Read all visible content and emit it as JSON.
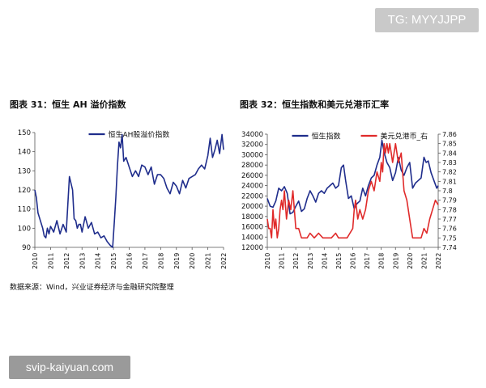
{
  "watermark_top": "TG: MYYJJPP",
  "watermark_bottom": "svip-kaiyuan.com",
  "source": "数据来源：Wind，兴业证券经济与金融研究院整理",
  "colors": {
    "blue": "#1f2d8c",
    "red": "#e02a2a"
  },
  "chart_data": [
    {
      "type": "line",
      "title": "图表 31：恒生 AH 溢价指数",
      "x_ticks": [
        "2010",
        "2011",
        "2012",
        "2013",
        "2014",
        "2015",
        "2016",
        "2017",
        "2018",
        "2019",
        "2020",
        "2021",
        "2022"
      ],
      "ylim": [
        90,
        150
      ],
      "y_ticks": [
        90,
        100,
        110,
        120,
        130,
        140,
        150
      ],
      "legend": "top-center",
      "series": [
        {
          "name": "恒生AH股溢价指数",
          "color": "#1f2d8c",
          "x": [
            2010.0,
            2010.1,
            2010.2,
            2010.35,
            2010.5,
            2010.6,
            2010.7,
            2010.8,
            2010.9,
            2011.0,
            2011.2,
            2011.4,
            2011.6,
            2011.8,
            2012.0,
            2012.2,
            2012.4,
            2012.5,
            2012.6,
            2012.7,
            2012.8,
            2012.9,
            2013.0,
            2013.2,
            2013.4,
            2013.6,
            2013.8,
            2014.0,
            2014.2,
            2014.4,
            2014.6,
            2014.8,
            2014.95,
            2015.05,
            2015.15,
            2015.25,
            2015.35,
            2015.45,
            2015.55,
            2015.65,
            2015.8,
            2016.0,
            2016.2,
            2016.4,
            2016.6,
            2016.8,
            2017.0,
            2017.2,
            2017.4,
            2017.6,
            2017.8,
            2018.0,
            2018.2,
            2018.4,
            2018.6,
            2018.8,
            2019.0,
            2019.2,
            2019.4,
            2019.6,
            2019.8,
            2020.0,
            2020.2,
            2020.4,
            2020.6,
            2020.8,
            2021.0,
            2021.15,
            2021.3,
            2021.45,
            2021.6,
            2021.75,
            2021.9,
            2022.0
          ],
          "values": [
            120,
            116,
            108,
            104,
            100,
            96,
            95,
            100,
            97,
            101,
            98,
            104,
            97,
            102,
            98,
            127,
            120,
            105,
            104,
            100,
            102,
            102,
            98,
            106,
            100,
            103,
            97,
            98,
            95,
            96,
            93,
            91,
            90,
            103,
            116,
            132,
            145,
            142,
            149,
            135,
            137,
            132,
            127,
            130,
            127,
            133,
            132,
            128,
            132,
            123,
            128,
            128,
            126,
            121,
            118,
            124,
            122,
            118,
            125,
            121,
            126,
            127,
            128,
            131,
            133,
            131,
            138,
            147,
            137,
            141,
            146,
            139,
            149,
            141
          ]
        }
      ]
    },
    {
      "type": "line",
      "title": "图表 32：恒生指数和美元兑港币汇率",
      "x_ticks": [
        "2010",
        "2011",
        "2012",
        "2013",
        "2014",
        "2015",
        "2016",
        "2017",
        "2018",
        "2019",
        "2020",
        "2021",
        "2022"
      ],
      "ylim": [
        12000,
        34000
      ],
      "y_ticks": [
        12000,
        14000,
        16000,
        18000,
        20000,
        22000,
        24000,
        26000,
        28000,
        30000,
        32000,
        34000
      ],
      "y2lim": [
        7.74,
        7.86
      ],
      "y2_ticks": [
        7.74,
        7.75,
        7.76,
        7.77,
        7.78,
        7.79,
        7.8,
        7.81,
        7.82,
        7.83,
        7.84,
        7.85,
        7.86
      ],
      "legend": "top-center",
      "series": [
        {
          "name": "恒生指数",
          "color": "#1f2d8c",
          "axis": "left",
          "x": [
            2010.0,
            2010.2,
            2010.4,
            2010.6,
            2010.8,
            2011.0,
            2011.2,
            2011.4,
            2011.6,
            2011.8,
            2012.0,
            2012.2,
            2012.4,
            2012.6,
            2012.8,
            2013.0,
            2013.2,
            2013.4,
            2013.6,
            2013.8,
            2014.0,
            2014.2,
            2014.4,
            2014.6,
            2014.8,
            2015.0,
            2015.2,
            2015.35,
            2015.5,
            2015.7,
            2015.9,
            2016.1,
            2016.3,
            2016.5,
            2016.7,
            2016.9,
            2017.1,
            2017.3,
            2017.5,
            2017.7,
            2017.9,
            2018.05,
            2018.2,
            2018.4,
            2018.6,
            2018.8,
            2019.0,
            2019.2,
            2019.4,
            2019.6,
            2019.8,
            2020.0,
            2020.2,
            2020.4,
            2020.6,
            2020.8,
            2021.0,
            2021.15,
            2021.3,
            2021.5,
            2021.7,
            2021.9,
            2022.0
          ],
          "values": [
            21500,
            20000,
            19800,
            21000,
            23500,
            23000,
            23800,
            22500,
            18500,
            18800,
            20000,
            21000,
            19000,
            19500,
            21500,
            23000,
            22000,
            20800,
            22500,
            23000,
            22500,
            23500,
            24000,
            24500,
            23500,
            24000,
            27500,
            28000,
            25000,
            21500,
            22000,
            19500,
            20500,
            21000,
            23500,
            22000,
            24000,
            25500,
            26000,
            28000,
            29500,
            32800,
            30500,
            28500,
            27500,
            25000,
            26500,
            29500,
            27000,
            26000,
            27500,
            28500,
            23500,
            24500,
            25000,
            25500,
            29500,
            28500,
            28800,
            26500,
            25000,
            23500,
            24000
          ]
        },
        {
          "name": "美元兑港币_右",
          "color": "#e02a2a",
          "axis": "right",
          "x": [
            2010.0,
            2010.1,
            2010.2,
            2010.3,
            2010.4,
            2010.5,
            2010.6,
            2010.7,
            2010.8,
            2010.9,
            2011.0,
            2011.1,
            2011.2,
            2011.35,
            2011.5,
            2011.65,
            2011.8,
            2011.9,
            2012.0,
            2012.2,
            2012.4,
            2012.6,
            2012.8,
            2013.0,
            2013.3,
            2013.6,
            2013.9,
            2014.2,
            2014.5,
            2014.8,
            2015.0,
            2015.3,
            2015.6,
            2015.8,
            2016.0,
            2016.1,
            2016.2,
            2016.35,
            2016.5,
            2016.7,
            2016.9,
            2017.1,
            2017.3,
            2017.5,
            2017.7,
            2017.9,
            2018.0,
            2018.1,
            2018.2,
            2018.3,
            2018.4,
            2018.5,
            2018.6,
            2018.7,
            2018.8,
            2018.9,
            2019.0,
            2019.2,
            2019.4,
            2019.6,
            2019.8,
            2020.0,
            2020.1,
            2020.2,
            2020.3,
            2020.4,
            2020.6,
            2020.8,
            2021.0,
            2021.2,
            2021.4,
            2021.6,
            2021.8,
            2022.0
          ],
          "values": [
            7.77,
            7.76,
            7.76,
            7.75,
            7.78,
            7.76,
            7.77,
            7.75,
            7.76,
            7.78,
            7.79,
            7.78,
            7.8,
            7.77,
            7.79,
            7.78,
            7.8,
            7.78,
            7.76,
            7.76,
            7.75,
            7.75,
            7.75,
            7.755,
            7.75,
            7.755,
            7.75,
            7.75,
            7.75,
            7.755,
            7.75,
            7.75,
            7.75,
            7.755,
            7.76,
            7.78,
            7.79,
            7.77,
            7.78,
            7.77,
            7.78,
            7.8,
            7.81,
            7.8,
            7.82,
            7.81,
            7.83,
            7.82,
            7.85,
            7.84,
            7.85,
            7.84,
            7.85,
            7.84,
            7.83,
            7.84,
            7.85,
            7.83,
            7.84,
            7.8,
            7.79,
            7.77,
            7.76,
            7.75,
            7.75,
            7.75,
            7.75,
            7.75,
            7.76,
            7.755,
            7.77,
            7.78,
            7.79,
            7.785
          ]
        }
      ]
    }
  ]
}
